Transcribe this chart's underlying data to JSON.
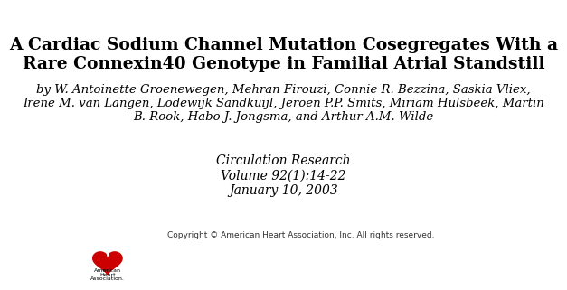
{
  "background_color": "#ffffff",
  "title_line1": "A Cardiac Sodium Channel Mutation Cosegregates With a",
  "title_line2": "Rare Connexin40 Genotype in Familial Atrial Standstill",
  "authors_line1": "by W. Antoinette Groenewegen, Mehran Firouzi, Connie R. Bezzina, Saskia Vliex,",
  "authors_line2": "Irene M. van Langen, Lodewijk Sandkuijl, Jeroen P.P. Smits, Miriam Hulsbeek, Martin",
  "authors_line3": "B. Rook, Habo J. Jongsma, and Arthur A.M. Wilde",
  "journal_line1": "Circulation Research",
  "journal_line2": "Volume 92(1):14-22",
  "journal_line3": "January 10, 2003",
  "copyright_text": "Copyright © American Heart Association, Inc. All rights reserved.",
  "title_fontsize": 13.5,
  "authors_fontsize": 9.5,
  "journal_fontsize": 10,
  "copyright_fontsize": 6.5
}
